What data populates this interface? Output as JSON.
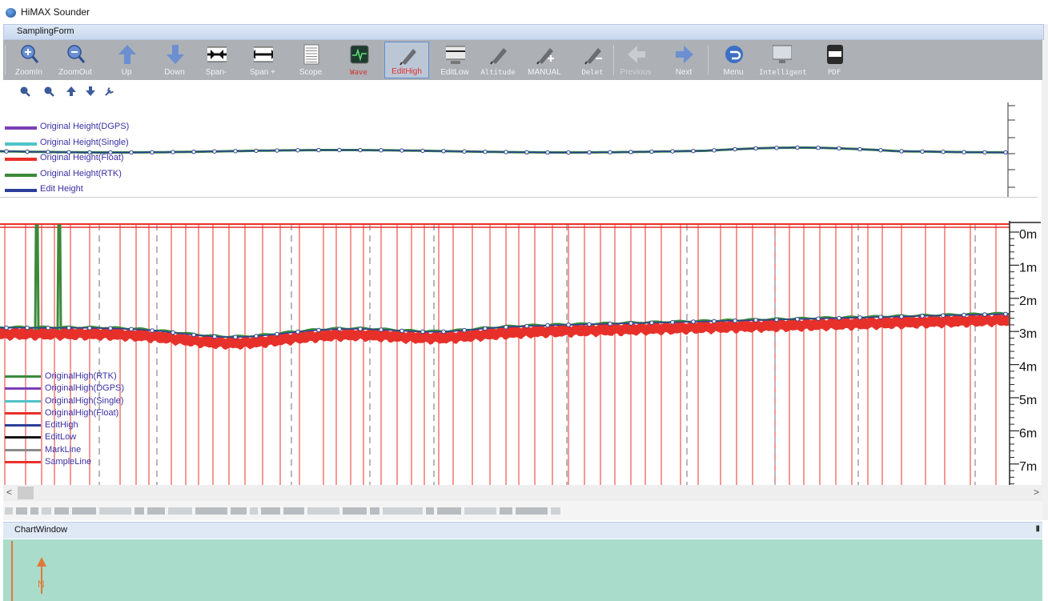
{
  "app": {
    "title": "HiMAX Sounder",
    "form_title": "SamplingForm"
  },
  "toolbar": {
    "items": [
      {
        "id": "zoomin",
        "label": "ZoomIn",
        "icon": "zoom-in-icon"
      },
      {
        "id": "zoomout",
        "label": "ZoomOut",
        "icon": "zoom-out-icon"
      },
      {
        "id": "up",
        "label": "Up",
        "icon": "arrow-up-icon"
      },
      {
        "id": "down",
        "label": "Down",
        "icon": "arrow-down-icon"
      },
      {
        "id": "span-minus",
        "label": "Span-",
        "icon": "span-narrow-icon"
      },
      {
        "id": "span-plus",
        "label": "Span +",
        "icon": "span-widen-icon"
      },
      {
        "id": "scope",
        "label": "Scope",
        "icon": "scope-icon"
      },
      {
        "id": "wave",
        "label": "Wave",
        "icon": "wave-icon"
      },
      {
        "id": "edithigh",
        "label": "EditHigh",
        "icon": "pen-icon"
      },
      {
        "id": "editlow",
        "label": "EditLow",
        "icon": "edit-low-icon"
      },
      {
        "id": "altitude",
        "label": "Altitude",
        "icon": "pen-icon"
      },
      {
        "id": "manual",
        "label": "MANUAL",
        "icon": "pen-plus-icon"
      },
      {
        "id": "delet",
        "label": "Delet",
        "icon": "pen-minus-icon"
      },
      {
        "id": "previous",
        "label": "Previous",
        "icon": "arrow-left-icon"
      },
      {
        "id": "next",
        "label": "Next",
        "icon": "arrow-right-icon"
      },
      {
        "id": "menu",
        "label": "Menu",
        "icon": "return-icon"
      },
      {
        "id": "intelligent",
        "label": "Intelligent",
        "icon": "monitor-icon"
      },
      {
        "id": "pdf",
        "label": "PDF",
        "icon": "pdf-icon"
      }
    ],
    "active": "EditHigh",
    "disabled": [
      "Previous"
    ],
    "colors": {
      "label": "#f1f4f8",
      "active_label": "#e03030",
      "bar": "#adb0b4",
      "accent": "#5b8fd8"
    }
  },
  "top_chart": {
    "legend": [
      {
        "label": "Original Height(DGPS)",
        "color": "#7b3fb5"
      },
      {
        "label": "Original Height(Single)",
        "color": "#4fc3c9"
      },
      {
        "label": "Original Height(Float)",
        "color": "#e8302a"
      },
      {
        "label": "Original Height(RTK)",
        "color": "#3a8a3a"
      },
      {
        "label": "Edit Height",
        "color": "#2c3f9a"
      }
    ]
  },
  "depth_chart": {
    "y_ticks": [
      "0m",
      "1m",
      "2m",
      "3m",
      "4m",
      "5m",
      "6m",
      "7m"
    ],
    "legend": [
      {
        "label": "OriginalHigh(RTK)",
        "color": "#3a8a3a"
      },
      {
        "label": "OriginalHigh(DGPS)",
        "color": "#7b3fb5"
      },
      {
        "label": "OriginalHigh(Single)",
        "color": "#4fc3c9"
      },
      {
        "label": "OriginalHigh(Float)",
        "color": "#e8302a"
      },
      {
        "label": "EditHigh",
        "color": "#2c3f9a"
      },
      {
        "label": "EditLow",
        "color": "#111111"
      },
      {
        "label": "MarkLine",
        "color": "#8a8a8a"
      },
      {
        "label": "SampleLine",
        "color": "#e8302a"
      }
    ]
  },
  "chart_window": {
    "title": "ChartWindow",
    "pin_icon": "pin-icon",
    "north_label": "N",
    "bg_color": "#a9dccb"
  },
  "scroll": {
    "left_arrow": "<",
    "right_arrow": ">"
  }
}
